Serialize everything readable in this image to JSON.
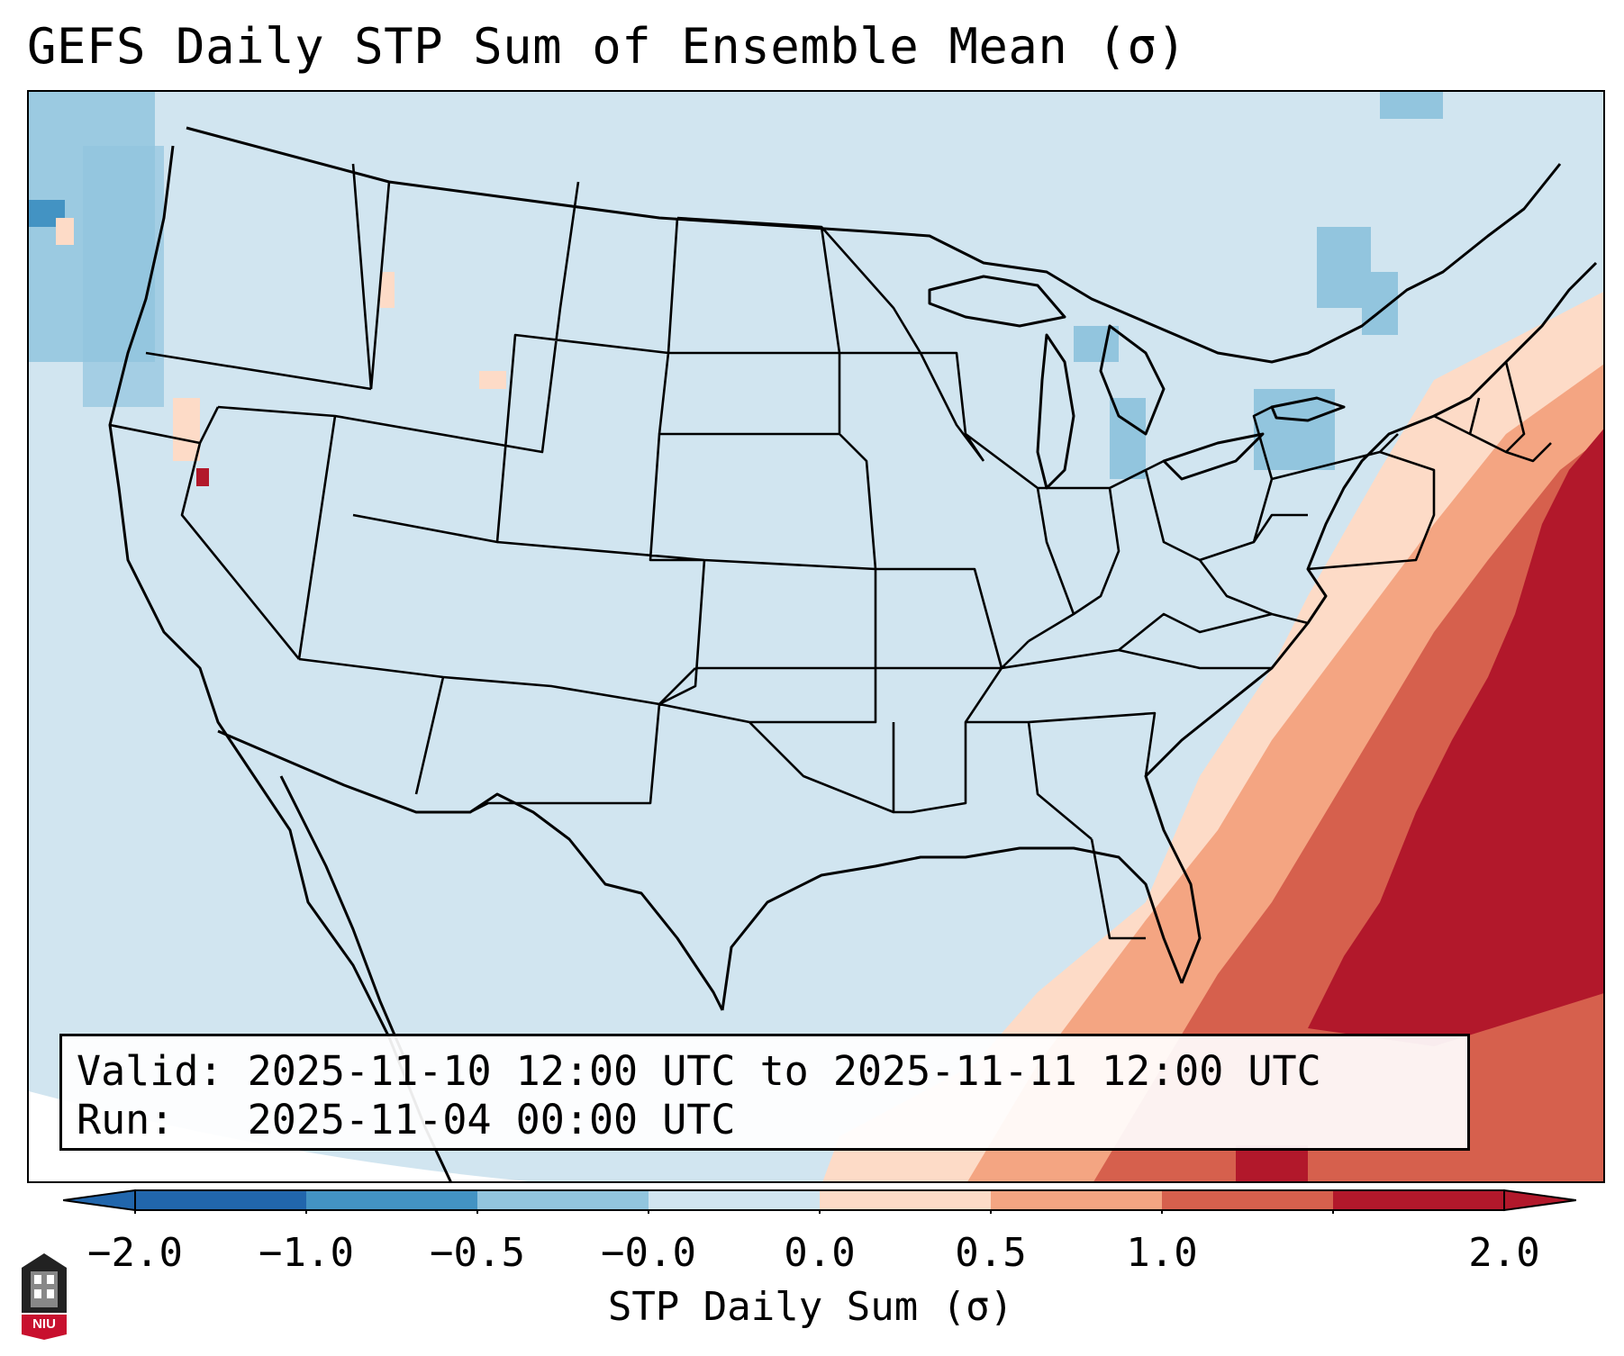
{
  "title": "GEFS Daily STP Sum of Ensemble Mean (σ)",
  "info": {
    "valid_line": "Valid: 2025-11-10 12:00 UTC to 2025-11-11 12:00 UTC",
    "run_line": "Run:   2025-11-04 00:00 UTC"
  },
  "colorbar": {
    "title": "STP Daily Sum (σ)",
    "tick_labels": [
      "−2.0",
      "−1.0",
      "−0.5",
      "−0.0",
      "0.0",
      "0.5",
      "1.0",
      "2.0"
    ],
    "colors": [
      "#2166ac",
      "#4393c3",
      "#92c5de",
      "#d1e5f0",
      "#fddbc7",
      "#f4a582",
      "#d6604d",
      "#b2182b"
    ],
    "extend": "both"
  },
  "map": {
    "background_color": "#d1e5f0",
    "line_color": "#000000",
    "region": "Contiguous United States"
  },
  "logo": {
    "text": "NIU"
  }
}
